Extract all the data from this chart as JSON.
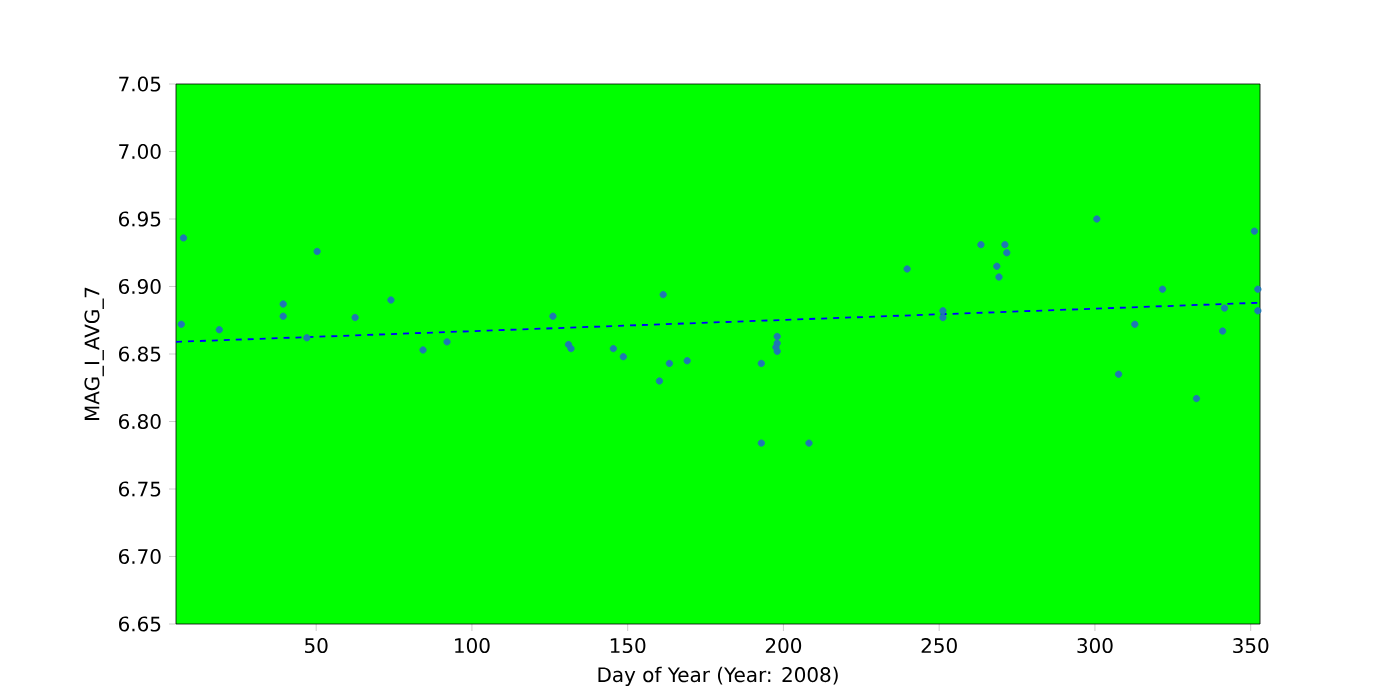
{
  "chart_data": {
    "type": "scatter",
    "xlabel": "Day of Year (Year: 2008)",
    "ylabel": "MAG_I_AVG_7",
    "xlim": [
      5,
      353
    ],
    "ylim": [
      6.65,
      7.05
    ],
    "xticks": [
      50,
      100,
      150,
      200,
      250,
      300,
      350
    ],
    "yticks": [
      {
        "value": 6.65,
        "label": "6.65"
      },
      {
        "value": 6.7,
        "label": "6.70"
      },
      {
        "value": 6.75,
        "label": "6.75"
      },
      {
        "value": 6.8,
        "label": "6.80"
      },
      {
        "value": 6.85,
        "label": "6.85"
      },
      {
        "value": 6.9,
        "label": "6.90"
      },
      {
        "value": 6.95,
        "label": "6.95"
      },
      {
        "value": 7.0,
        "label": "7.00"
      },
      {
        "value": 7.05,
        "label": "7.05"
      }
    ],
    "grid": false,
    "series": [
      {
        "color": "#1f77b4",
        "marker": "circle",
        "x": [
          7.4,
          6.7,
          18.9,
          39.4,
          39.4,
          50.3,
          47,
          62.5,
          74,
          84.3,
          92,
          126,
          131,
          131.8,
          145.4,
          148.6,
          161.4,
          160.2,
          163.4,
          169.1,
          192.9,
          192.9,
          208.2,
          198,
          198,
          197.6,
          198,
          239.7,
          251.2,
          251.2,
          263.4,
          271.1,
          271.7,
          268.5,
          269.2,
          300.6,
          307.6,
          312.8,
          321.7,
          332.6,
          341,
          341.6,
          351.2,
          352.3,
          352.3
        ],
        "values": [
          6.936,
          6.872,
          6.868,
          6.887,
          6.878,
          6.926,
          6.862,
          6.877,
          6.89,
          6.853,
          6.859,
          6.878,
          6.857,
          6.854,
          6.854,
          6.848,
          6.894,
          6.83,
          6.843,
          6.845,
          6.843,
          6.784,
          6.784,
          6.863,
          6.858,
          6.855,
          6.852,
          6.913,
          6.882,
          6.877,
          6.931,
          6.931,
          6.925,
          6.915,
          6.907,
          6.95,
          6.835,
          6.872,
          6.898,
          6.817,
          6.867,
          6.884,
          6.941,
          6.898,
          6.882
        ]
      },
      {
        "type": "line",
        "color": "#0000ff",
        "line_style": "dashed",
        "marker": "none",
        "x": [
          5,
          353
        ],
        "values": [
          6.859,
          6.888
        ]
      }
    ]
  }
}
